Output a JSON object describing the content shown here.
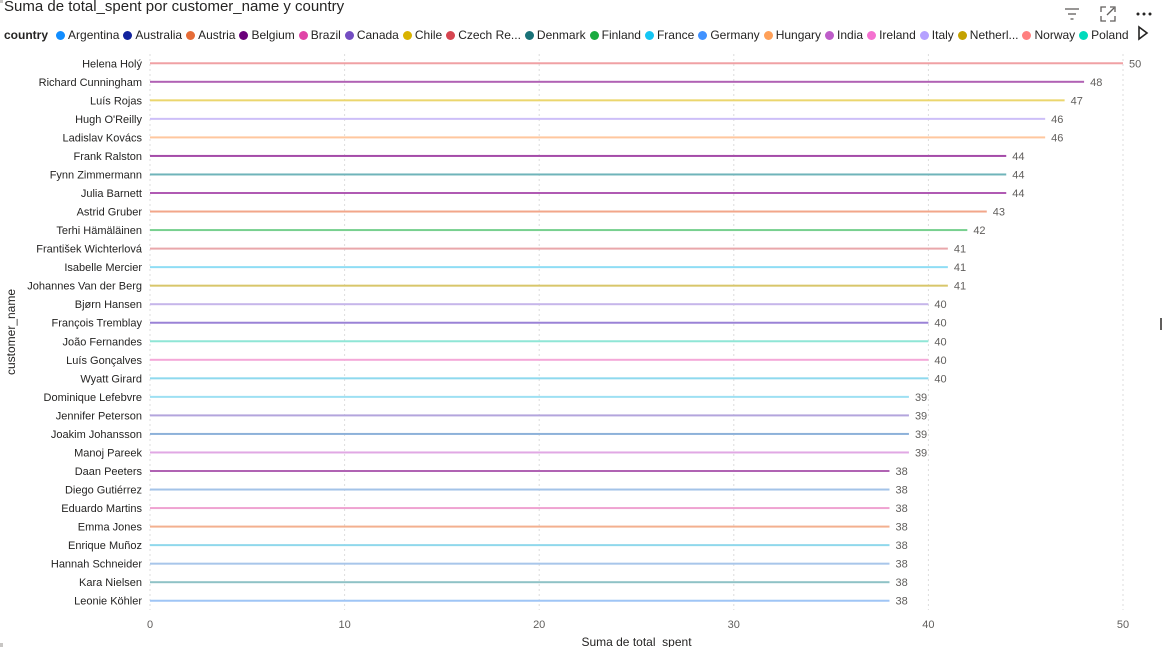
{
  "header": {
    "title": "Suma de total_spent por customer_name y country"
  },
  "legend": {
    "title": "country",
    "items": [
      {
        "label": "Argentina",
        "color": "#118DFF"
      },
      {
        "label": "Australia",
        "color": "#12239E"
      },
      {
        "label": "Austria",
        "color": "#E66C37"
      },
      {
        "label": "Belgium",
        "color": "#6B007B"
      },
      {
        "label": "Brazil",
        "color": "#E044A7"
      },
      {
        "label": "Canada",
        "color": "#744EC2"
      },
      {
        "label": "Chile",
        "color": "#D9B300"
      },
      {
        "label": "Czech Re...",
        "color": "#D64550"
      },
      {
        "label": "Denmark",
        "color": "#197278"
      },
      {
        "label": "Finland",
        "color": "#1AAB40"
      },
      {
        "label": "France",
        "color": "#15C6F4"
      },
      {
        "label": "Germany",
        "color": "#4092FF"
      },
      {
        "label": "Hungary",
        "color": "#FFA058"
      },
      {
        "label": "India",
        "color": "#BE5DC9"
      },
      {
        "label": "Ireland",
        "color": "#F472D0"
      },
      {
        "label": "Italy",
        "color": "#B5A1FF"
      },
      {
        "label": "Netherl...",
        "color": "#C4A200"
      },
      {
        "label": "Norway",
        "color": "#FF8080"
      },
      {
        "label": "Poland",
        "color": "#00DBBC"
      }
    ]
  },
  "chart_data": {
    "type": "bar",
    "orientation": "horizontal",
    "xlabel": "Suma de total_spent",
    "ylabel": "customer_name",
    "xlim": [
      0,
      50
    ],
    "xticks": [
      0,
      10,
      20,
      30,
      40,
      50
    ],
    "grid": true,
    "legend_position": "top",
    "categories": [
      "Helena Holý",
      "Richard Cunningham",
      "Luís Rojas",
      "Hugh O'Reilly",
      "Ladislav Kovács",
      "Frank Ralston",
      "Fynn Zimmermann",
      "Julia Barnett",
      "Astrid Gruber",
      "Terhi Hämäläinen",
      "František Wichterlová",
      "Isabelle Mercier",
      "Johannes Van der Berg",
      "Bjørn Hansen",
      "François Tremblay",
      "João Fernandes",
      "Luís Gonçalves",
      "Wyatt Girard",
      "Dominique Lefebvre",
      "Jennifer Peterson",
      "Joakim Johansson",
      "Manoj Pareek",
      "Daan Peeters",
      "Diego Gutiérrez",
      "Eduardo Martins",
      "Emma Jones",
      "Enrique Muñoz",
      "Hannah Schneider",
      "Kara Nielsen",
      "Leonie Köhler"
    ],
    "bars": [
      {
        "category": "Helena Holý",
        "country": "Czech Re...",
        "value": 50,
        "color": "#F0A0A4",
        "label": "50"
      },
      {
        "category": "Richard Cunningham",
        "country": "Belgium",
        "value": 48,
        "color": "#B061B4",
        "label": "48"
      },
      {
        "category": "Luís Rojas",
        "country": "Chile",
        "value": 47,
        "color": "#EBD66E",
        "label": "47"
      },
      {
        "category": "Hugh O'Reilly",
        "country": "Italy",
        "value": 46,
        "color": "#CDBFF8",
        "label": "46"
      },
      {
        "category": "Ladislav Kovács",
        "country": "Hungary",
        "value": 46,
        "color": "#FFC79E",
        "label": "46"
      },
      {
        "category": "Frank Ralston",
        "country": "Belgium",
        "value": 44,
        "color": "#A44BA8",
        "label": "44"
      },
      {
        "category": "Fynn Zimmermann",
        "country": "Denmark",
        "value": 44,
        "color": "#6FB4BA",
        "label": "44"
      },
      {
        "category": "Julia Barnett",
        "country": "Belgium",
        "value": 44,
        "color": "#B05AB3",
        "label": "44"
      },
      {
        "category": "Astrid Gruber",
        "country": "Austria",
        "value": 43,
        "color": "#F2A68A",
        "label": "43"
      },
      {
        "category": "Terhi Hämäläinen",
        "country": "Finland",
        "value": 42,
        "color": "#78D08F",
        "label": "42"
      },
      {
        "category": "František Wichterlová",
        "country": "Czech Re...",
        "value": 41,
        "color": "#E9A7AB",
        "label": "41"
      },
      {
        "category": "Isabelle Mercier",
        "country": "France",
        "value": 41,
        "color": "#8FDDF5",
        "label": "41"
      },
      {
        "category": "Johannes Van der Berg",
        "country": "Netherl...",
        "value": 41,
        "color": "#D8C66A",
        "label": "41"
      },
      {
        "category": "Bjørn Hansen",
        "country": "Canada",
        "value": 40,
        "color": "#C6B6EA",
        "label": "40"
      },
      {
        "category": "François Tremblay",
        "country": "Canada",
        "value": 40,
        "color": "#9A82D6",
        "label": "40"
      },
      {
        "category": "João Fernandes",
        "country": "Poland",
        "value": 40,
        "color": "#8FE6D6",
        "label": "40"
      },
      {
        "category": "Luís Gonçalves",
        "country": "Ireland",
        "value": 40,
        "color": "#F4A8D8",
        "label": "40"
      },
      {
        "category": "Wyatt Girard",
        "country": "France",
        "value": 40,
        "color": "#8ED9EE",
        "label": "40"
      },
      {
        "category": "Dominique Lefebvre",
        "country": "France",
        "value": 39,
        "color": "#9EE0F3",
        "label": "39"
      },
      {
        "category": "Jennifer Peterson",
        "country": "Canada",
        "value": 39,
        "color": "#B3A5DD",
        "label": "39"
      },
      {
        "category": "Joakim Johansson",
        "country": "Argentina",
        "value": 39,
        "color": "#8DB1D9",
        "label": "39"
      },
      {
        "category": "Manoj Pareek",
        "country": "India",
        "value": 39,
        "color": "#E1A8E4",
        "label": "39"
      },
      {
        "category": "Daan Peeters",
        "country": "Belgium",
        "value": 38,
        "color": "#B063B3",
        "label": "38"
      },
      {
        "category": "Diego Gutiérrez",
        "country": "Germany",
        "value": 38,
        "color": "#A3C3E8",
        "label": "38"
      },
      {
        "category": "Eduardo Martins",
        "country": "Brazil",
        "value": 38,
        "color": "#EFA3D1",
        "label": "38"
      },
      {
        "category": "Emma Jones",
        "country": "Austria",
        "value": 38,
        "color": "#F3B08F",
        "label": "38"
      },
      {
        "category": "Enrique Muñoz",
        "country": "France",
        "value": 38,
        "color": "#8FD8EC",
        "label": "38"
      },
      {
        "category": "Hannah Schneider",
        "country": "Germany",
        "value": 38,
        "color": "#A8C6EA",
        "label": "38"
      },
      {
        "category": "Kara Nielsen",
        "country": "Denmark",
        "value": 38,
        "color": "#8FC2C6",
        "label": "38"
      },
      {
        "category": "Leonie Köhler",
        "country": "Germany",
        "value": 38,
        "color": "#9FC5F5",
        "label": "38"
      }
    ]
  },
  "colors": {
    "grid": "#DCDCDC",
    "text": "#252423",
    "axis_text": "#605E5C"
  }
}
